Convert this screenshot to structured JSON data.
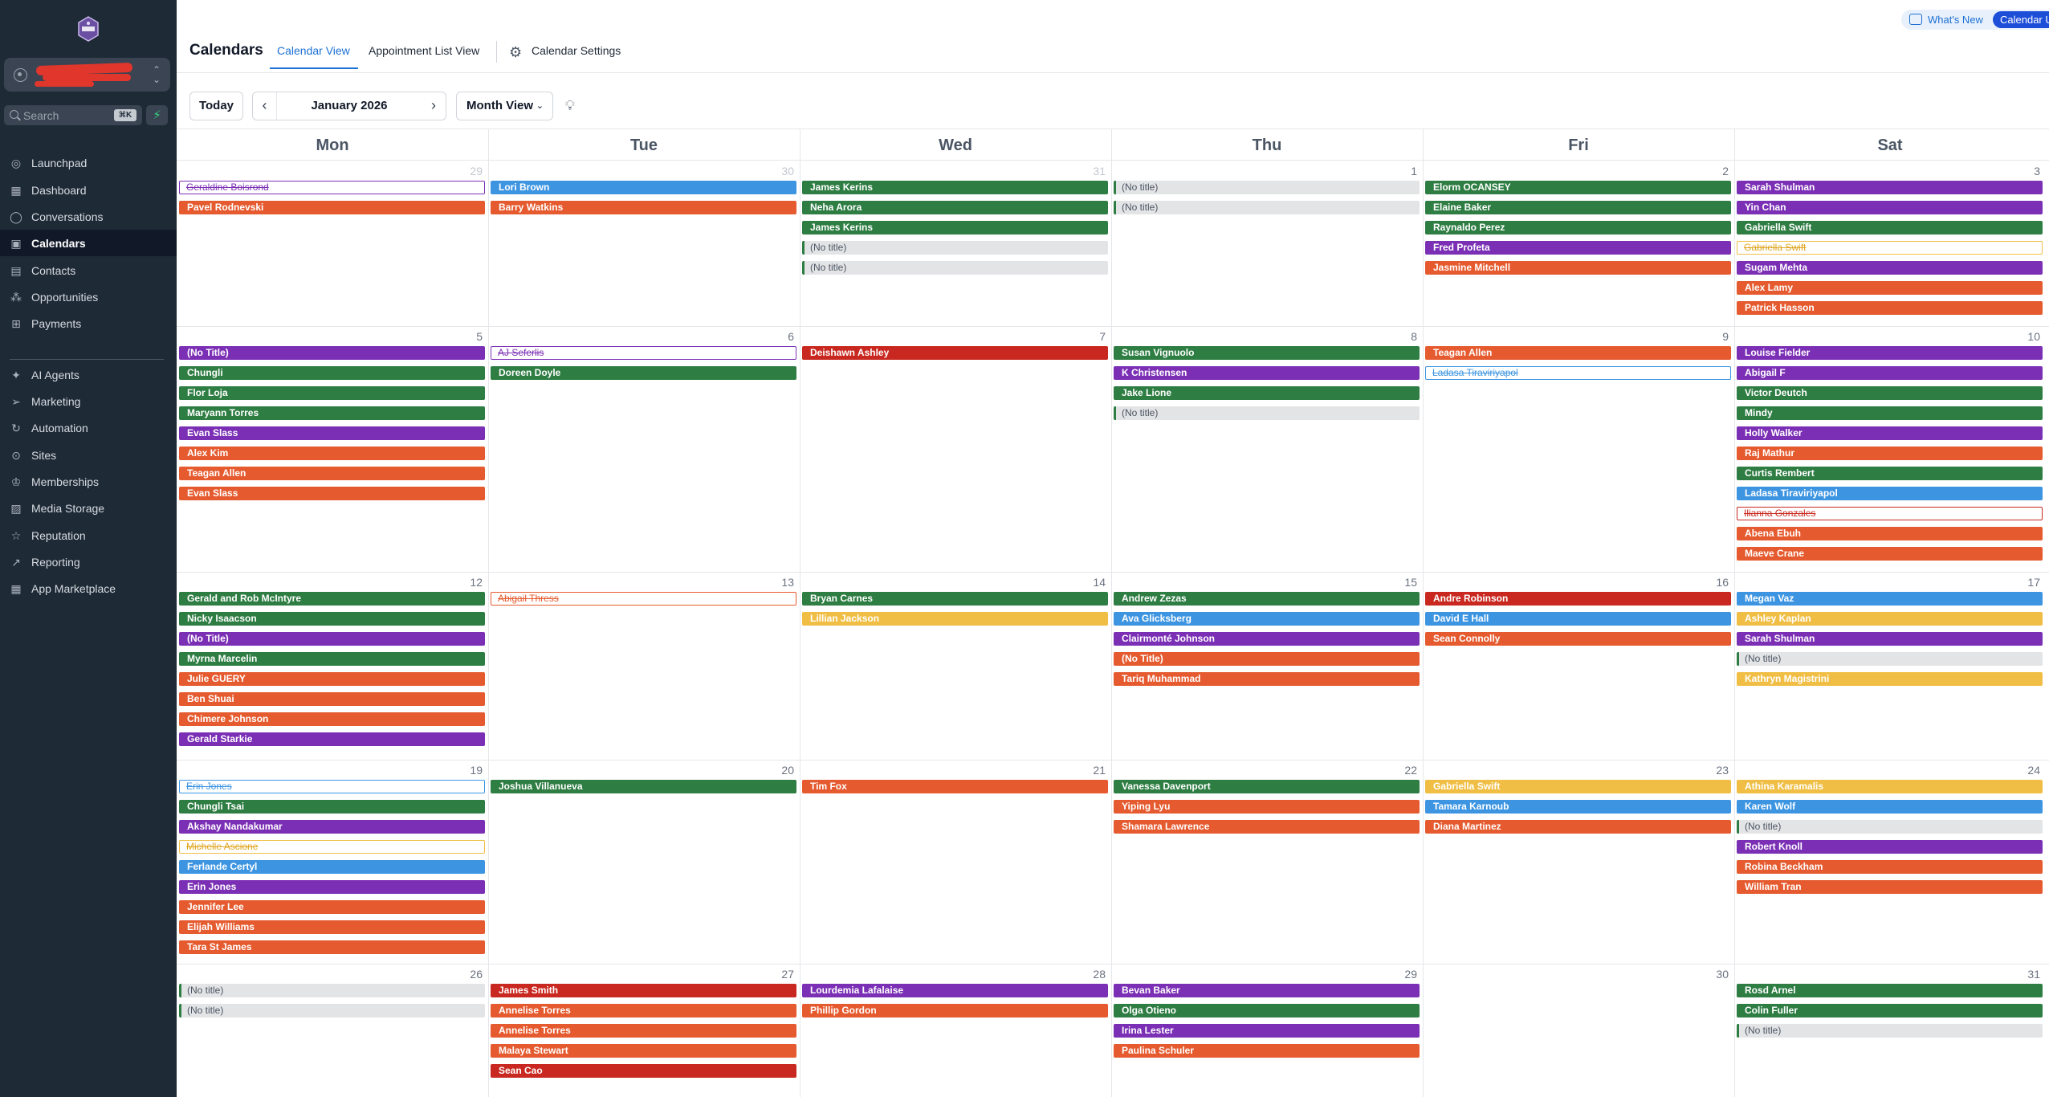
{
  "sidebar": {
    "search_placeholder": "Search",
    "search_shortcut": "⌘K",
    "items": [
      {
        "label": "Launchpad",
        "icon": "launchpad-icon",
        "glyph": "◎",
        "active": false
      },
      {
        "label": "Dashboard",
        "icon": "dashboard-icon",
        "glyph": "▦",
        "active": false
      },
      {
        "label": "Conversations",
        "icon": "conversations-icon",
        "glyph": "◯",
        "active": false
      },
      {
        "label": "Calendars",
        "icon": "calendar-icon",
        "glyph": "▣",
        "active": true
      },
      {
        "label": "Contacts",
        "icon": "contacts-icon",
        "glyph": "▤",
        "active": false
      },
      {
        "label": "Opportunities",
        "icon": "opportunities-icon",
        "glyph": "⁂",
        "active": false
      },
      {
        "label": "Payments",
        "icon": "payments-icon",
        "glyph": "⊞",
        "active": false
      },
      {
        "label": "AI Agents",
        "icon": "ai-agents-icon",
        "glyph": "✦",
        "active": false
      },
      {
        "label": "Marketing",
        "icon": "marketing-icon",
        "glyph": "➢",
        "active": false
      },
      {
        "label": "Automation",
        "icon": "automation-icon",
        "glyph": "↻",
        "active": false
      },
      {
        "label": "Sites",
        "icon": "sites-icon",
        "glyph": "⊙",
        "active": false
      },
      {
        "label": "Memberships",
        "icon": "memberships-icon",
        "glyph": "♔",
        "active": false
      },
      {
        "label": "Media Storage",
        "icon": "media-storage-icon",
        "glyph": "▨",
        "active": false
      },
      {
        "label": "Reputation",
        "icon": "reputation-icon",
        "glyph": "☆",
        "active": false
      },
      {
        "label": "Reporting",
        "icon": "reporting-icon",
        "glyph": "↗",
        "active": false
      },
      {
        "label": "App Marketplace",
        "icon": "app-marketplace-icon",
        "glyph": "▦",
        "active": false
      }
    ]
  },
  "header": {
    "title": "Calendars",
    "tabs": [
      "Calendar View",
      "Appointment List View"
    ],
    "settings_label": "Calendar Settings",
    "whats_new": "What's New",
    "badge": "Calendar U"
  },
  "toolbar": {
    "today": "Today",
    "month": "January 2026",
    "view": "Month View"
  },
  "calendar": {
    "weekdays": [
      "Mon",
      "Tue",
      "Wed",
      "Thu",
      "Fri",
      "Sat"
    ],
    "colors": {
      "green": "#2e7d43",
      "orange": "#e55a2e",
      "purple": "#7b2fb5",
      "blue": "#3d95e2",
      "red": "#c8281f",
      "yellow": "#f0be44",
      "grey": "#e3e4e6"
    },
    "weeks": [
      [
        {
          "day": "29",
          "other": true,
          "events": [
            {
              "t": "Geraldine  Boisrond",
              "c": "purple",
              "s": "outline"
            },
            {
              "t": "Pavel Rodnevski",
              "c": "orange"
            }
          ]
        },
        {
          "day": "30",
          "other": true,
          "events": [
            {
              "t": "Lori Brown",
              "c": "blue"
            },
            {
              "t": "Barry Watkins",
              "c": "orange"
            }
          ]
        },
        {
          "day": "31",
          "other": true,
          "events": [
            {
              "t": "James Kerins",
              "c": "green"
            },
            {
              "t": "Neha Arora",
              "c": "green"
            },
            {
              "t": "James Kerins",
              "c": "green"
            },
            {
              "t": "(No title)",
              "c": "grey"
            },
            {
              "t": "(No title)",
              "c": "grey"
            }
          ]
        },
        {
          "day": "1",
          "events": [
            {
              "t": "(No title)",
              "c": "grey"
            },
            {
              "t": "(No title)",
              "c": "grey"
            }
          ]
        },
        {
          "day": "2",
          "events": [
            {
              "t": "Elorm  OCANSEY",
              "c": "green"
            },
            {
              "t": "Elaine Baker",
              "c": "green"
            },
            {
              "t": "Raynaldo Perez",
              "c": "green"
            },
            {
              "t": "Fred Profeta",
              "c": "purple"
            },
            {
              "t": "Jasmine Mitchell",
              "c": "orange"
            }
          ]
        },
        {
          "day": "3",
          "events": [
            {
              "t": "Sarah Shulman",
              "c": "purple"
            },
            {
              "t": "Yin Chan",
              "c": "purple"
            },
            {
              "t": "Gabriella Swift",
              "c": "green"
            },
            {
              "t": "Gabriella Swift",
              "c": "yellow",
              "s": "outline"
            },
            {
              "t": "Sugam Mehta",
              "c": "purple"
            },
            {
              "t": "Alex Lamy",
              "c": "orange"
            },
            {
              "t": "Patrick Hasson",
              "c": "orange"
            }
          ]
        }
      ],
      [
        {
          "day": "5",
          "events": [
            {
              "t": "(No Title)",
              "c": "purple"
            },
            {
              "t": "Chungli",
              "c": "green"
            },
            {
              "t": "Flor Loja",
              "c": "green"
            },
            {
              "t": "Maryann Torres",
              "c": "green"
            },
            {
              "t": "Evan Slass",
              "c": "purple"
            },
            {
              "t": "Alex Kim",
              "c": "orange"
            },
            {
              "t": "Teagan Allen",
              "c": "orange"
            },
            {
              "t": "Evan Slass",
              "c": "orange"
            }
          ]
        },
        {
          "day": "6",
          "events": [
            {
              "t": "AJ Seferlis",
              "c": "purple",
              "s": "outline"
            },
            {
              "t": "Doreen  Doyle",
              "c": "green"
            }
          ]
        },
        {
          "day": "7",
          "events": [
            {
              "t": "Deishawn Ashley",
              "c": "red"
            }
          ]
        },
        {
          "day": "8",
          "events": [
            {
              "t": "Susan Vignuolo",
              "c": "green"
            },
            {
              "t": "K Christensen",
              "c": "purple"
            },
            {
              "t": "Jake Lione",
              "c": "green"
            },
            {
              "t": "(No title)",
              "c": "grey"
            }
          ]
        },
        {
          "day": "9",
          "events": [
            {
              "t": "Teagan Allen",
              "c": "orange"
            },
            {
              "t": "Ladasa Tiraviriyapol",
              "c": "blue",
              "s": "outline"
            }
          ]
        },
        {
          "day": "10",
          "events": [
            {
              "t": "Louise  Fielder",
              "c": "purple"
            },
            {
              "t": "Abigail F",
              "c": "purple"
            },
            {
              "t": "Victor Deutch",
              "c": "green"
            },
            {
              "t": "Mindy",
              "c": "green"
            },
            {
              "t": "Holly Walker",
              "c": "purple"
            },
            {
              "t": "Raj Mathur",
              "c": "orange"
            },
            {
              "t": "Curtis Rembert",
              "c": "green"
            },
            {
              "t": "Ladasa Tiraviriyapol",
              "c": "blue"
            },
            {
              "t": "Ilianna Gonzales",
              "c": "red",
              "s": "outline"
            },
            {
              "t": "Abena Ebuh",
              "c": "orange"
            },
            {
              "t": "Maeve Crane",
              "c": "orange"
            }
          ]
        }
      ],
      [
        {
          "day": "12",
          "events": [
            {
              "t": "Gerald  and Rob McIntyre",
              "c": "green"
            },
            {
              "t": "Nicky Isaacson",
              "c": "green"
            },
            {
              "t": "(No Title)",
              "c": "purple"
            },
            {
              "t": "Myrna Marcelin",
              "c": "green"
            },
            {
              "t": "Julie GUERY",
              "c": "orange"
            },
            {
              "t": "Ben Shuai",
              "c": "orange"
            },
            {
              "t": "Chimere Johnson",
              "c": "orange"
            },
            {
              "t": "Gerald Starkie",
              "c": "purple"
            }
          ]
        },
        {
          "day": "13",
          "events": [
            {
              "t": "Abigail Thress",
              "c": "orange",
              "s": "outline"
            }
          ]
        },
        {
          "day": "14",
          "events": [
            {
              "t": "Bryan Carnes",
              "c": "green"
            },
            {
              "t": "Lillian Jackson",
              "c": "yellow"
            }
          ]
        },
        {
          "day": "15",
          "events": [
            {
              "t": "Andrew Zezas",
              "c": "green"
            },
            {
              "t": "Ava Glicksberg",
              "c": "blue"
            },
            {
              "t": "Clairmonté  Johnson",
              "c": "purple"
            },
            {
              "t": "(No Title)",
              "c": "orange"
            },
            {
              "t": "Tariq  Muhammad",
              "c": "orange"
            }
          ]
        },
        {
          "day": "16",
          "events": [
            {
              "t": "Andre Robinson",
              "c": "red"
            },
            {
              "t": "David E Hall",
              "c": "blue"
            },
            {
              "t": "Sean Connolly",
              "c": "orange"
            }
          ]
        },
        {
          "day": "17",
          "events": [
            {
              "t": "Megan Vaz",
              "c": "blue"
            },
            {
              "t": "Ashley Kaplan",
              "c": "yellow"
            },
            {
              "t": "Sarah Shulman",
              "c": "purple"
            },
            {
              "t": "(No title)",
              "c": "grey"
            },
            {
              "t": "Kathryn Magistrini",
              "c": "yellow"
            }
          ]
        }
      ],
      [
        {
          "day": "19",
          "events": [
            {
              "t": "Erin Jones",
              "c": "blue",
              "s": "outline"
            },
            {
              "t": "Chungli Tsai",
              "c": "green"
            },
            {
              "t": "Akshay  Nandakumar",
              "c": "purple"
            },
            {
              "t": "Michelle Ascione",
              "c": "yellow",
              "s": "outline"
            },
            {
              "t": "Ferlande Certyl",
              "c": "blue"
            },
            {
              "t": "Erin Jones",
              "c": "purple"
            },
            {
              "t": "Jennifer Lee",
              "c": "orange"
            },
            {
              "t": "Elijah Williams",
              "c": "orange"
            },
            {
              "t": "Tara St James",
              "c": "orange"
            }
          ]
        },
        {
          "day": "20",
          "events": [
            {
              "t": "Joshua Villanueva",
              "c": "green"
            }
          ]
        },
        {
          "day": "21",
          "events": [
            {
              "t": "Tim Fox",
              "c": "orange"
            }
          ]
        },
        {
          "day": "22",
          "events": [
            {
              "t": "Vanessa Davenport",
              "c": "green"
            },
            {
              "t": "Yiping Lyu",
              "c": "orange"
            },
            {
              "t": "Shamara Lawrence",
              "c": "orange"
            }
          ]
        },
        {
          "day": "23",
          "events": [
            {
              "t": "Gabriella Swift",
              "c": "yellow"
            },
            {
              "t": "Tamara Karnoub",
              "c": "blue"
            },
            {
              "t": "Diana Martinez",
              "c": "orange"
            }
          ]
        },
        {
          "day": "24",
          "events": [
            {
              "t": "Athina Karamalis",
              "c": "yellow"
            },
            {
              "t": "Karen Wolf",
              "c": "blue"
            },
            {
              "t": "(No title)",
              "c": "grey"
            },
            {
              "t": "Robert Knoll",
              "c": "purple"
            },
            {
              "t": "Robina  Beckham",
              "c": "orange"
            },
            {
              "t": "William Tran",
              "c": "orange"
            }
          ]
        }
      ],
      [
        {
          "day": "26",
          "events": [
            {
              "t": "(No title)",
              "c": "grey"
            },
            {
              "t": "(No title)",
              "c": "grey"
            }
          ]
        },
        {
          "day": "27",
          "events": [
            {
              "t": "James  Smith",
              "c": "red"
            },
            {
              "t": "Annelise Torres",
              "c": "orange"
            },
            {
              "t": "Annelise Torres",
              "c": "orange"
            },
            {
              "t": "Malaya Stewart",
              "c": "orange"
            },
            {
              "t": "Sean Cao",
              "c": "red"
            }
          ]
        },
        {
          "day": "28",
          "events": [
            {
              "t": "Lourdemia Lafalaise",
              "c": "purple"
            },
            {
              "t": "Phillip Gordon",
              "c": "orange"
            }
          ]
        },
        {
          "day": "29",
          "events": [
            {
              "t": "Bevan Baker",
              "c": "purple"
            },
            {
              "t": "Olga Otieno",
              "c": "green"
            },
            {
              "t": "Irina Lester",
              "c": "purple"
            },
            {
              "t": "Paulina Schuler",
              "c": "orange"
            }
          ]
        },
        {
          "day": "30",
          "events": []
        },
        {
          "day": "31",
          "events": [
            {
              "t": "Rosd Arnel",
              "c": "green"
            },
            {
              "t": "Colin Fuller",
              "c": "green"
            },
            {
              "t": "(No title)",
              "c": "grey"
            }
          ]
        }
      ]
    ]
  }
}
